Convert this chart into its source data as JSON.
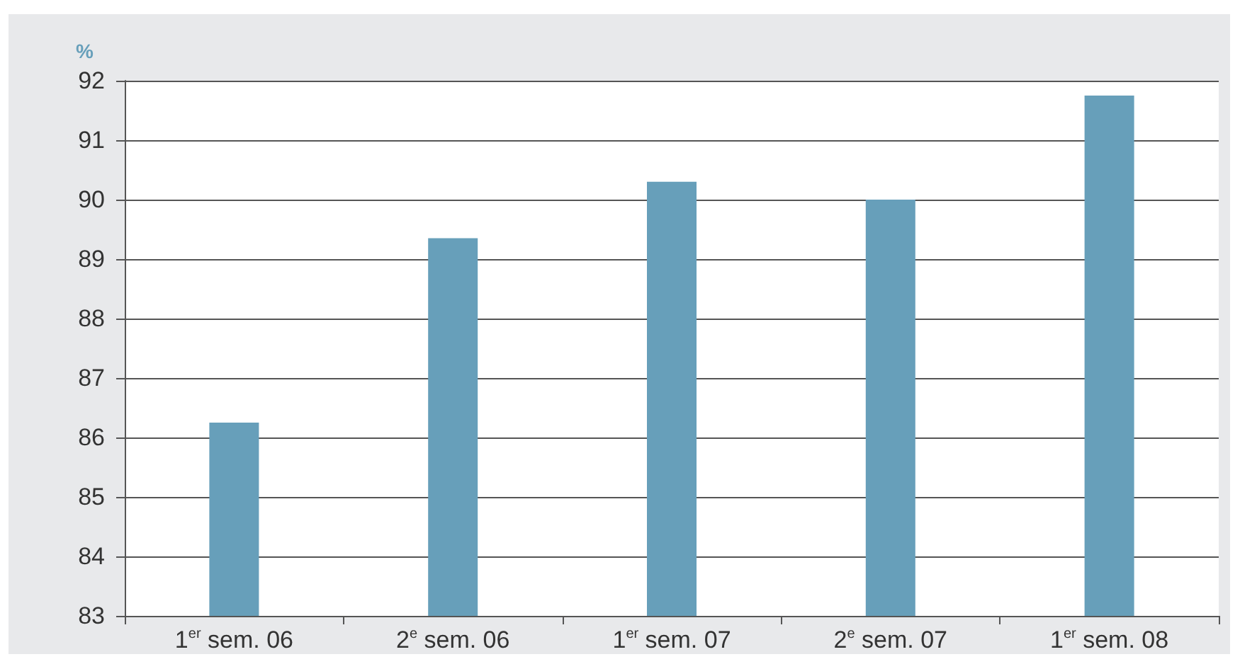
{
  "chart_data": {
    "type": "bar",
    "ylabel": "%",
    "categories": [
      "1$^{er}$ sem. 06",
      "2$^{e}$ sem. 06",
      "1$^{er}$ sem. 07",
      "2$^{e}$ sem. 07",
      "1$^{er}$ sem. 08"
    ],
    "values": [
      86.25,
      89.35,
      90.3,
      90.0,
      91.75
    ],
    "color": "#679fba",
    "ylim": [
      83,
      92
    ],
    "yticks": [
      83,
      84,
      85,
      86,
      87,
      88,
      89,
      90,
      91,
      92
    ],
    "grid": "y"
  }
}
